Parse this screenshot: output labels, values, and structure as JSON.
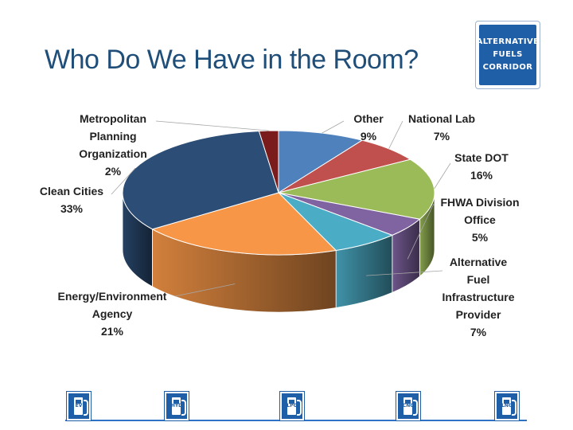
{
  "title": "Who Do We Have in the Room?",
  "sign": {
    "lines": [
      "ALTERNATIVE",
      "FUELS",
      "CORRIDOR"
    ]
  },
  "fuel_icons": [
    {
      "name": "ev",
      "code": "EV"
    },
    {
      "name": "hydrogen",
      "code": "HYD"
    },
    {
      "name": "lpg",
      "code": "LPG"
    },
    {
      "name": "cng",
      "code": "CNG"
    },
    {
      "name": "lng",
      "code": "LNG"
    }
  ],
  "chart_data": {
    "type": "pie",
    "slices": [
      {
        "label": "Other",
        "lines": [
          "Other"
        ],
        "value": 9,
        "value_label": "9%",
        "color": "#4f81bd"
      },
      {
        "label": "National Lab",
        "lines": [
          "National Lab"
        ],
        "value": 7,
        "value_label": "7%",
        "color": "#c0504d"
      },
      {
        "label": "State DOT",
        "lines": [
          "State DOT"
        ],
        "value": 16,
        "value_label": "16%",
        "color": "#9bbb59"
      },
      {
        "label": "FHWA Division Office",
        "lines": [
          "FHWA Division",
          "Office"
        ],
        "value": 5,
        "value_label": "5%",
        "color": "#8064a2"
      },
      {
        "label": "Alternative Fuel Infrastructure Provider",
        "lines": [
          "Alternative",
          "Fuel",
          "Infrastructure",
          "Provider"
        ],
        "value": 7,
        "value_label": "7%",
        "color": "#4bacc6"
      },
      {
        "label": "Energy/Environment Agency",
        "lines": [
          "Energy/Environment",
          "Agency"
        ],
        "value": 21,
        "value_label": "21%",
        "color": "#f79646"
      },
      {
        "label": "Clean Cities",
        "lines": [
          "Clean Cities"
        ],
        "value": 33,
        "value_label": "33%",
        "color": "#2c4d75"
      },
      {
        "label": "Metropolitan Planning Organization",
        "lines": [
          "Metropolitan",
          "Planning",
          "Organization"
        ],
        "value": 2,
        "value_label": "2%",
        "color": "#7b1c1c"
      }
    ]
  }
}
